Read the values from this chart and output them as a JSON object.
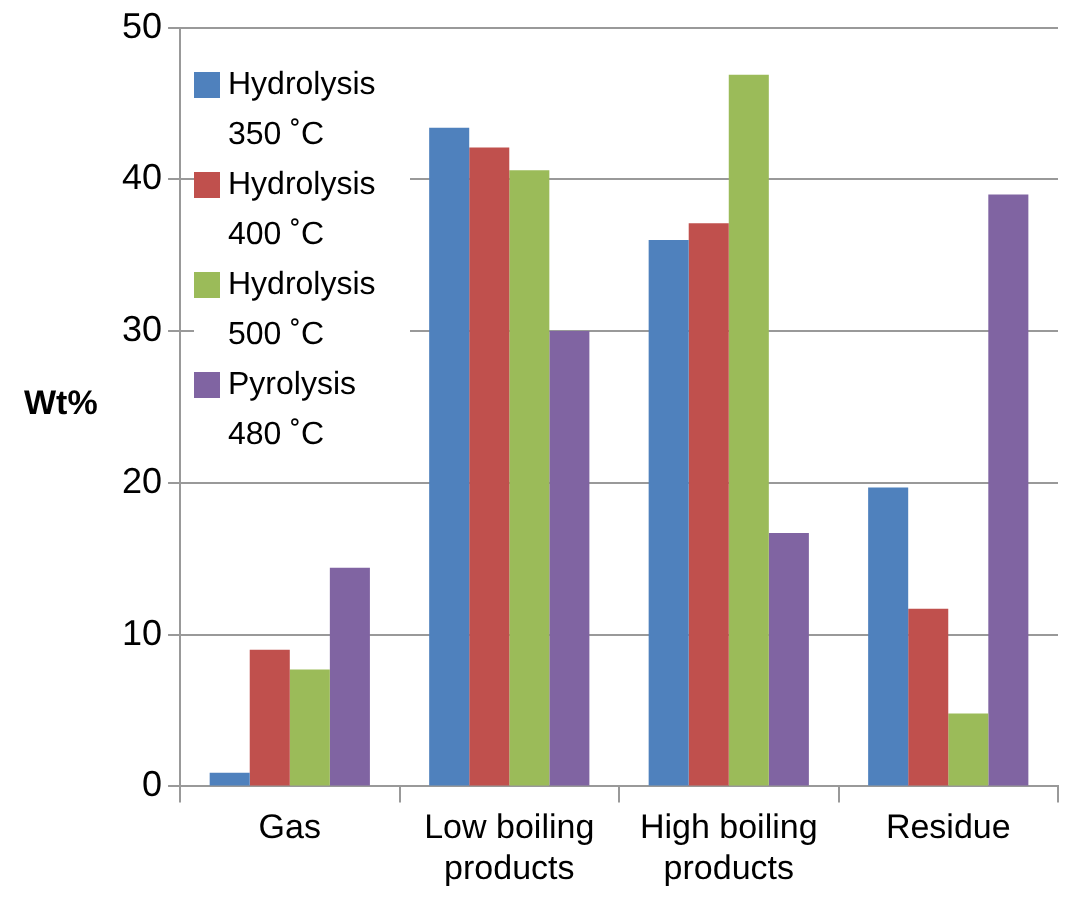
{
  "chart_data": {
    "type": "bar",
    "ylabel": "Wt%",
    "categories": [
      "Gas",
      "Low boiling products",
      "High boiling products",
      "Residue"
    ],
    "series": [
      {
        "name": "Hydrolysis 350 ˚C",
        "color": "#4f81bd",
        "values": [
          0.9,
          43.4,
          36.0,
          19.7
        ]
      },
      {
        "name": "Hydrolysis 400 ˚C",
        "color": "#c0504d",
        "values": [
          9.0,
          42.1,
          37.1,
          11.7
        ]
      },
      {
        "name": "Hydrolysis 500 ˚C",
        "color": "#9bbb59",
        "values": [
          7.7,
          40.6,
          46.9,
          4.8
        ]
      },
      {
        "name": "Pyrolysis 480 ˚C",
        "color": "#8064a2",
        "values": [
          14.4,
          30.0,
          16.7,
          39.0
        ]
      }
    ],
    "ylim": [
      0,
      50
    ],
    "yticks": [
      0,
      10,
      20,
      30,
      40,
      50
    ],
    "grid": "y",
    "legend": "top left"
  }
}
